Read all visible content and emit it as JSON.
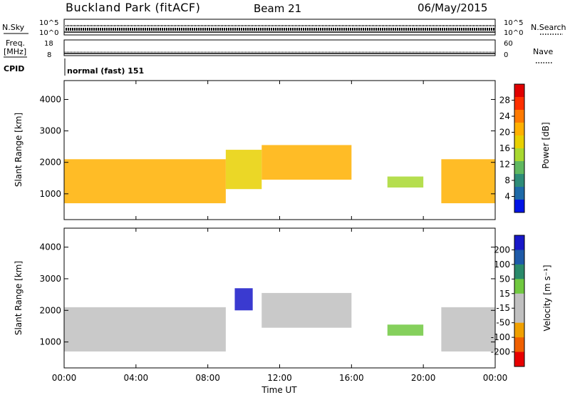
{
  "header": {
    "station": "Buckland Park (fitACF)",
    "beam": "Beam 21",
    "date": "06/May/2015"
  },
  "strips": {
    "nsky": {
      "label": "N.Sky",
      "tick_top": "10^5",
      "tick_bottom": "10^0"
    },
    "nsearch": {
      "label": "N.Search",
      "tick_top": "10^5",
      "tick_bottom": "10^0"
    },
    "freq": {
      "label_line1": "Freq.",
      "label_line2": "[MHz]",
      "tick_top": "18",
      "tick_bottom": "8"
    },
    "nave": {
      "label": "Nave",
      "tick_top": "60",
      "tick_bottom": "0"
    },
    "cpid": {
      "label": "CPID",
      "value": "normal (fast) 151"
    }
  },
  "colorbars": {
    "power": {
      "label": "Power [dB]",
      "ticks": [
        "28",
        "24",
        "20",
        "16",
        "12",
        "8",
        "4"
      ],
      "colors": [
        "#e00000",
        "#ff3000",
        "#ff7a00",
        "#ffb000",
        "#e8d000",
        "#a8d830",
        "#60b860",
        "#2e8c78",
        "#1e6aa8",
        "#0014e6"
      ]
    },
    "velocity": {
      "label": "Velocity [m s⁻¹]",
      "ticks": [
        "200",
        "100",
        "50",
        "15",
        "-15",
        "-50",
        "-100",
        "-200"
      ],
      "colors": [
        "#1818c8",
        "#1e5aa8",
        "#2a8a6a",
        "#70c840",
        "#c0c0c0",
        "#c0c0c0",
        "#f0a000",
        "#f06000",
        "#e80000"
      ]
    }
  },
  "chart_data": [
    {
      "type": "heatmap",
      "title": "Power",
      "xlabel": "",
      "ylabel": "Slant Range [km]",
      "x_ticks": [
        "00:00",
        "04:00",
        "08:00",
        "12:00",
        "16:00",
        "20:00",
        "00:00"
      ],
      "y_ticks": [
        "1000",
        "2000",
        "3000",
        "4000"
      ],
      "xlim": [
        0,
        24
      ],
      "ylim": [
        180,
        4600
      ],
      "colorbar": "Power [dB]",
      "clim": [
        0,
        32
      ],
      "bands": [
        {
          "start": 0,
          "end": 9,
          "lower": 700,
          "upper": 2100,
          "value": 20
        },
        {
          "start": 9,
          "end": 11,
          "lower": 1150,
          "upper": 2400,
          "value": 18
        },
        {
          "start": 11,
          "end": 16,
          "lower": 1450,
          "upper": 2550,
          "value": 22
        },
        {
          "start": 18,
          "end": 20,
          "lower": 1200,
          "upper": 1550,
          "value": 16
        },
        {
          "start": 21,
          "end": 24,
          "lower": 700,
          "upper": 2100,
          "value": 22
        }
      ]
    },
    {
      "type": "heatmap",
      "title": "Velocity",
      "xlabel": "Time UT",
      "ylabel": "Slant Range [km]",
      "x_ticks": [
        "00:00",
        "04:00",
        "08:00",
        "12:00",
        "16:00",
        "20:00",
        "00:00"
      ],
      "y_ticks": [
        "1000",
        "2000",
        "3000",
        "4000"
      ],
      "xlim": [
        0,
        24
      ],
      "ylim": [
        180,
        4600
      ],
      "colorbar": "Velocity [m s⁻¹]",
      "clim": [
        -250,
        250
      ],
      "bands": [
        {
          "start": 0,
          "end": 9,
          "lower": 700,
          "upper": 2100,
          "value": 0
        },
        {
          "start": 9.5,
          "end": 10.5,
          "lower": 2000,
          "upper": 2700,
          "value": 200
        },
        {
          "start": 11,
          "end": 16,
          "lower": 1450,
          "upper": 2550,
          "value": -30
        },
        {
          "start": 18,
          "end": 20,
          "lower": 1200,
          "upper": 1550,
          "value": 40
        },
        {
          "start": 21,
          "end": 24,
          "lower": 700,
          "upper": 2100,
          "value": 0
        }
      ]
    }
  ]
}
